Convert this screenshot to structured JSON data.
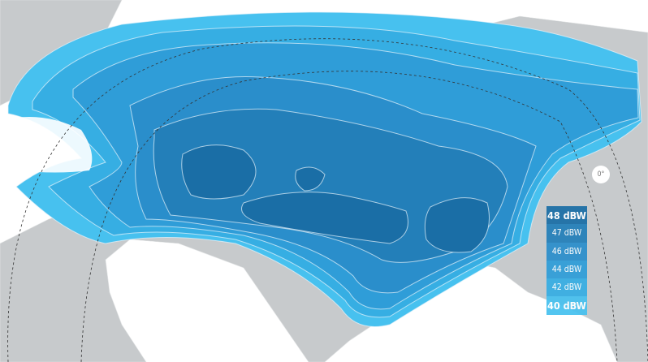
{
  "map": {
    "land_color": "#c7cacc",
    "background_color": "#ffffff",
    "orbital_position_label": "0°",
    "legend": [
      {
        "label": "48 dBW",
        "color": "#1a6ea6"
      },
      {
        "label": "47 dBW",
        "color": "#237fb9"
      },
      {
        "label": "46 dBW",
        "color": "#2a8ecb"
      },
      {
        "label": "44 dBW",
        "color": "#2f9dd8"
      },
      {
        "label": "42 dBW",
        "color": "#36aee3"
      },
      {
        "label": "40 dBW",
        "color": "#47c1ef"
      }
    ]
  }
}
